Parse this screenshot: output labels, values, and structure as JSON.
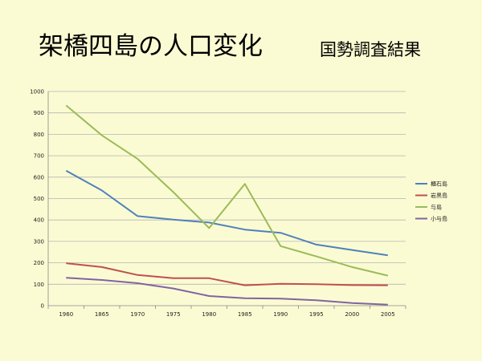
{
  "title": "架橋四島の人口変化",
  "subtitle": "国勢調査結果",
  "chart_data": {
    "type": "line",
    "x": [
      "1960",
      "1865",
      "1970",
      "1975",
      "1980",
      "1985",
      "1990",
      "1995",
      "2000",
      "2005"
    ],
    "ylim": [
      0,
      1000
    ],
    "yticks": [
      0,
      100,
      200,
      300,
      400,
      500,
      600,
      700,
      800,
      900,
      1000
    ],
    "grid": true,
    "legend_position": "right",
    "series": [
      {
        "name": "櫃石島",
        "color": "#4f81bd",
        "values": [
          630,
          538,
          418,
          402,
          388,
          355,
          340,
          285,
          260,
          235
        ]
      },
      {
        "name": "岩黒島",
        "color": "#c0504d",
        "values": [
          198,
          180,
          143,
          128,
          128,
          95,
          102,
          100,
          96,
          95
        ]
      },
      {
        "name": "与島",
        "color": "#9bbb59",
        "values": [
          935,
          795,
          685,
          530,
          362,
          568,
          278,
          230,
          180,
          140
        ]
      },
      {
        "name": "小与島",
        "color": "#8064a2",
        "values": [
          130,
          120,
          105,
          80,
          45,
          35,
          33,
          25,
          12,
          5
        ]
      }
    ]
  }
}
